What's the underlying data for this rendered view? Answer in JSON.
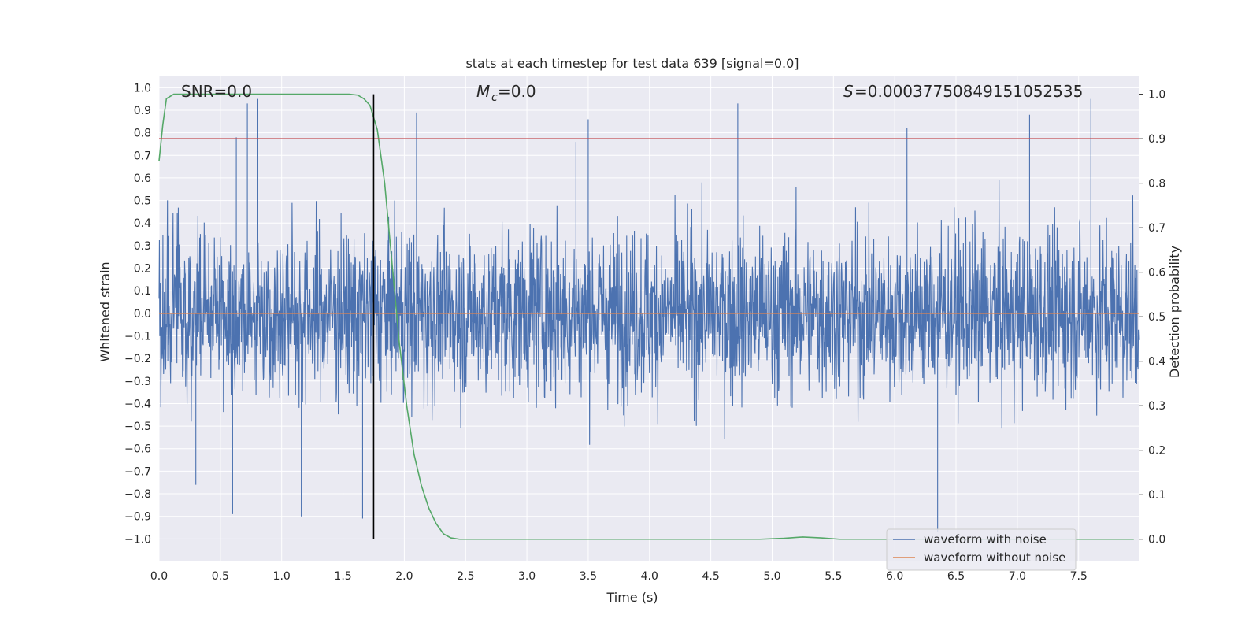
{
  "chart_data": {
    "type": "line",
    "title": "stats at each timestep for test data 639 [signal=0.0]",
    "xlabel": "Time (s)",
    "ylabel_left": "Whitened strain",
    "ylabel_right": "Detection probability",
    "xlim": [
      0.0,
      7.99
    ],
    "ylim_left": [
      -1.1,
      1.05
    ],
    "ylim_right": [
      -0.05,
      1.04
    ],
    "x_ticks": [
      "0.0",
      "0.5",
      "1.0",
      "1.5",
      "2.0",
      "2.5",
      "3.0",
      "3.5",
      "4.0",
      "4.5",
      "5.0",
      "5.5",
      "6.0",
      "6.5",
      "7.0",
      "7.5"
    ],
    "x_tick_values": [
      0.0,
      0.5,
      1.0,
      1.5,
      2.0,
      2.5,
      3.0,
      3.5,
      4.0,
      4.5,
      5.0,
      5.5,
      6.0,
      6.5,
      7.0,
      7.5
    ],
    "y_ticks_left": [
      "1.0",
      "0.9",
      "0.8",
      "0.7",
      "0.6",
      "0.5",
      "0.4",
      "0.3",
      "0.2",
      "0.1",
      "0.0",
      "−0.1",
      "−0.2",
      "−0.3",
      "−0.4",
      "−0.5",
      "−0.6",
      "−0.7",
      "−0.8",
      "−0.9",
      "−1.0"
    ],
    "y_tick_values_left": [
      1.0,
      0.9,
      0.8,
      0.7,
      0.6,
      0.5,
      0.4,
      0.3,
      0.2,
      0.1,
      0.0,
      -0.1,
      -0.2,
      -0.3,
      -0.4,
      -0.5,
      -0.6,
      -0.7,
      -0.8,
      -0.9,
      -1.0
    ],
    "y_ticks_right": [
      "1.0",
      "0.9",
      "0.8",
      "0.7",
      "0.6",
      "0.5",
      "0.4",
      "0.3",
      "0.2",
      "0.1",
      "0.0"
    ],
    "y_tick_values_right": [
      1.0,
      0.9,
      0.8,
      0.7,
      0.6,
      0.5,
      0.4,
      0.3,
      0.2,
      0.1,
      0.0
    ],
    "annotations": {
      "snr": "SNR=0.0",
      "mc_symbol": "M",
      "mc_sub": "c",
      "mc_value": "=0.0",
      "s_symbol": "S",
      "s_value": "=0.0003775084915105253​5"
    },
    "series": [
      {
        "name": "waveform with noise",
        "color": "#4c72b0",
        "axis": "left",
        "style": "noise",
        "description_range": [
          -1.0,
          0.95
        ],
        "peaks": [
          {
            "x": 0.63,
            "y": 0.78
          },
          {
            "x": 0.72,
            "y": 0.93
          },
          {
            "x": 0.8,
            "y": 0.95
          },
          {
            "x": 0.6,
            "y": -0.89
          },
          {
            "x": 1.16,
            "y": -0.9
          },
          {
            "x": 1.66,
            "y": -0.91
          },
          {
            "x": 2.1,
            "y": 0.89
          },
          {
            "x": 4.72,
            "y": 0.93
          },
          {
            "x": 7.1,
            "y": 0.88
          },
          {
            "x": 7.6,
            "y": 0.95
          },
          {
            "x": 6.35,
            "y": -0.97
          },
          {
            "x": 0.3,
            "y": -0.76
          },
          {
            "x": 3.4,
            "y": 0.76
          },
          {
            "x": 3.5,
            "y": 0.86
          },
          {
            "x": 6.1,
            "y": 0.82
          }
        ]
      },
      {
        "name": "waveform without noise",
        "color": "#dd8452",
        "axis": "left",
        "x": [
          0.0,
          7.99
        ],
        "values": [
          0.0,
          0.0
        ]
      },
      {
        "name": "detection probability",
        "color": "#55a868",
        "axis": "right",
        "x": [
          0.0,
          0.03,
          0.06,
          0.12,
          0.2,
          0.5,
          1.0,
          1.4,
          1.55,
          1.62,
          1.67,
          1.72,
          1.78,
          1.84,
          1.9,
          1.96,
          2.02,
          2.08,
          2.14,
          2.2,
          2.26,
          2.32,
          2.38,
          2.45,
          2.6,
          3.0,
          4.0,
          4.9,
          5.1,
          5.25,
          5.4,
          5.55,
          6.0,
          7.0,
          7.95
        ],
        "values": [
          0.85,
          0.93,
          0.99,
          1.0,
          1.0,
          1.0,
          1.0,
          1.0,
          1.0,
          0.998,
          0.99,
          0.975,
          0.92,
          0.8,
          0.62,
          0.44,
          0.3,
          0.19,
          0.12,
          0.07,
          0.035,
          0.012,
          0.003,
          0.0,
          0.0,
          0.0,
          0.0,
          0.0,
          0.002,
          0.005,
          0.003,
          0.0,
          0.0,
          0.0,
          0.0
        ]
      },
      {
        "name": "threshold",
        "color": "#c44e52",
        "axis": "right",
        "x": [
          0.0,
          7.99
        ],
        "values": [
          0.9,
          0.9
        ]
      },
      {
        "name": "detection time",
        "color": "#000000",
        "axis": "right",
        "x": [
          1.75,
          1.75
        ],
        "values": [
          0.0,
          1.0
        ]
      }
    ],
    "legend": {
      "location": "lower right",
      "entries": [
        {
          "label": "waveform with noise",
          "color": "#4c72b0"
        },
        {
          "label": "waveform without noise",
          "color": "#dd8452"
        }
      ]
    },
    "grid": true,
    "background": "#eaeaf2",
    "grid_color": "#ffffff"
  }
}
